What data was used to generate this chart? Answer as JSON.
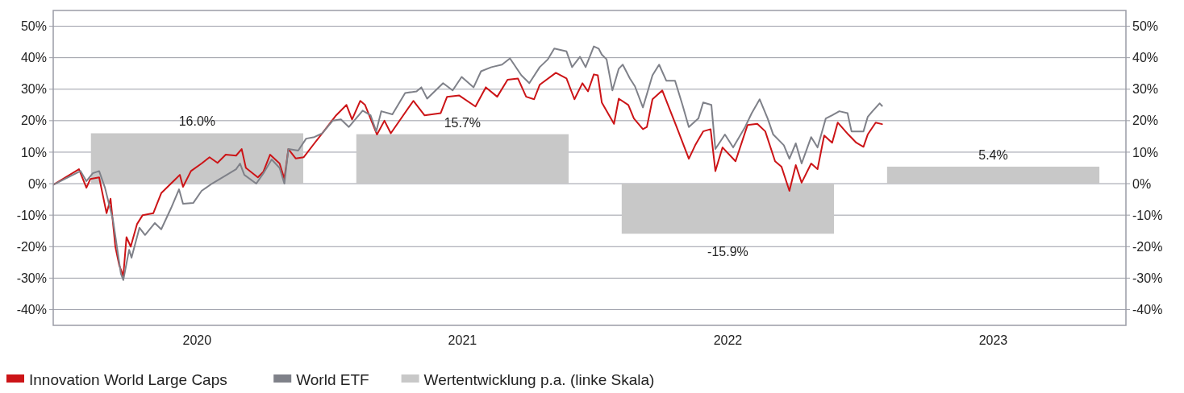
{
  "chart_data": {
    "type": "line",
    "xlim": [
      2019.958,
      2024.0
    ],
    "xticks": [
      {
        "value": 2020.5,
        "label": "2020"
      },
      {
        "value": 2021.5,
        "label": "2021"
      },
      {
        "value": 2022.5,
        "label": "2022"
      },
      {
        "value": 2023.5,
        "label": "2023"
      }
    ],
    "ylim": [
      -45,
      55
    ],
    "yticks": [
      {
        "value": -40,
        "label": "-40%"
      },
      {
        "value": -30,
        "label": "-30%"
      },
      {
        "value": -20,
        "label": "-20%"
      },
      {
        "value": -10,
        "label": "-10%"
      },
      {
        "value": 0,
        "label": "0%"
      },
      {
        "value": 10,
        "label": "10%"
      },
      {
        "value": 20,
        "label": "20%"
      },
      {
        "value": 30,
        "label": "30%"
      },
      {
        "value": 40,
        "label": "40%"
      },
      {
        "value": 50,
        "label": "50%"
      }
    ],
    "y2lim": [
      -45,
      55
    ],
    "y2ticks": [
      {
        "value": -40,
        "label": "-40%"
      },
      {
        "value": -30,
        "label": "-30%"
      },
      {
        "value": -20,
        "label": "-20%"
      },
      {
        "value": -10,
        "label": "-10%"
      },
      {
        "value": 0,
        "label": "0%"
      },
      {
        "value": 10,
        "label": "10%"
      },
      {
        "value": 20,
        "label": "20%"
      },
      {
        "value": 30,
        "label": "30%"
      },
      {
        "value": 40,
        "label": "40%"
      },
      {
        "value": 50,
        "label": "50%"
      }
    ],
    "grid": "y",
    "legend": "bottom",
    "line_style": "solid",
    "series": [
      {
        "name": "Innovation World Large Caps",
        "color": "#cc1417",
        "x": [
          2019.96,
          2020.055,
          2020.083,
          2020.098,
          2020.131,
          2020.159,
          2020.174,
          2020.192,
          2020.207,
          2020.222,
          2020.234,
          2020.25,
          2020.274,
          2020.295,
          2020.335,
          2020.365,
          2020.417,
          2020.435,
          2020.447,
          2020.477,
          2020.517,
          2020.547,
          2020.577,
          2020.608,
          2020.647,
          2020.668,
          2020.684,
          2020.729,
          2020.75,
          2020.775,
          2020.811,
          2020.829,
          2020.844,
          2020.872,
          2020.902,
          2020.942,
          2020.972,
          2021.024,
          2021.063,
          2021.084,
          2021.115,
          2021.133,
          2021.178,
          2021.206,
          2021.23,
          2021.315,
          2021.357,
          2021.418,
          2021.442,
          2021.488,
          2021.549,
          2021.588,
          2021.631,
          2021.67,
          2021.709,
          2021.74,
          2021.77,
          2021.791,
          2021.852,
          2021.892,
          2021.922,
          2021.952,
          2021.973,
          2021.995,
          2022.01,
          2022.025,
          2022.071,
          2022.089,
          2022.125,
          2022.146,
          2022.18,
          2022.195,
          2022.216,
          2022.253,
          2022.307,
          2022.353,
          2022.377,
          2022.407,
          2022.435,
          2022.453,
          2022.48,
          2022.529,
          2022.574,
          2022.611,
          2022.641,
          2022.678,
          2022.702,
          2022.732,
          2022.756,
          2022.778,
          2022.814,
          2022.838,
          2022.863,
          2022.893,
          2022.914,
          2022.954,
          2022.984,
          2023.011,
          2023.027,
          2023.057,
          2023.081
        ],
        "values": [
          -0.3,
          4.6,
          -1.3,
          1.5,
          2,
          -9.4,
          -4.8,
          -20,
          -26,
          -29.3,
          -17,
          -20,
          -12.8,
          -10,
          -9.4,
          -3,
          1.3,
          2.8,
          -1,
          4,
          6.4,
          8.4,
          6.6,
          9.2,
          8.9,
          11,
          5,
          2,
          3.8,
          9.2,
          6.4,
          1.5,
          11,
          8,
          8.4,
          12.8,
          16,
          21.7,
          25,
          20.4,
          26.3,
          25,
          15.6,
          20,
          16,
          26.3,
          21.7,
          22.4,
          27.6,
          28,
          24.5,
          30.6,
          27.6,
          33,
          33.4,
          27.6,
          26.8,
          31.4,
          35.2,
          33.4,
          26.8,
          31.9,
          29.3,
          34.7,
          34.4,
          25.8,
          19,
          27,
          25,
          20.7,
          17.3,
          18,
          26.8,
          29.6,
          18,
          7.9,
          12.2,
          16.6,
          17.3,
          4,
          11.5,
          7.1,
          18.6,
          19,
          16.6,
          7.1,
          5.4,
          -2.3,
          5.9,
          0.3,
          6.4,
          4.6,
          15.3,
          13,
          19.4,
          15.6,
          13,
          11.7,
          15.6,
          19.4,
          18.9
        ]
      },
      {
        "name": "World ETF",
        "color": "#7f8189",
        "x": [
          2019.96,
          2020.061,
          2020.083,
          2020.107,
          2020.131,
          2020.153,
          2020.183,
          2020.213,
          2020.222,
          2020.244,
          2020.253,
          2020.283,
          2020.304,
          2020.341,
          2020.365,
          2020.404,
          2020.432,
          2020.447,
          2020.486,
          2020.517,
          2020.556,
          2020.608,
          2020.647,
          2020.662,
          2020.678,
          2020.723,
          2020.75,
          2020.781,
          2020.811,
          2020.829,
          2020.844,
          2020.881,
          2020.911,
          2020.942,
          2020.972,
          2021.011,
          2021.042,
          2021.072,
          2021.124,
          2021.154,
          2021.175,
          2021.194,
          2021.236,
          2021.284,
          2021.327,
          2021.345,
          2021.367,
          2021.427,
          2021.463,
          2021.497,
          2021.542,
          2021.57,
          2021.609,
          2021.649,
          2021.679,
          2021.722,
          2021.752,
          2021.791,
          2021.822,
          2021.846,
          2021.892,
          2021.913,
          2021.943,
          2021.964,
          2021.995,
          2022.013,
          2022.025,
          2022.043,
          2022.065,
          2022.089,
          2022.104,
          2022.131,
          2022.15,
          2022.18,
          2022.216,
          2022.241,
          2022.268,
          2022.301,
          2022.329,
          2022.353,
          2022.389,
          2022.407,
          2022.438,
          2022.453,
          2022.489,
          2022.52,
          2022.565,
          2022.59,
          2022.62,
          2022.65,
          2022.671,
          2022.711,
          2022.732,
          2022.756,
          2022.778,
          2022.814,
          2022.838,
          2022.869,
          2022.893,
          2022.92,
          2022.951,
          2022.966,
          2023.011,
          2023.027,
          2023.045,
          2023.072,
          2023.081
        ],
        "values": [
          -0.3,
          4,
          0.8,
          3.3,
          4,
          -1.3,
          -11.5,
          -28.6,
          -30.6,
          -21,
          -23.5,
          -14,
          -16.3,
          -12.5,
          -14.5,
          -7.4,
          -1.8,
          -6.4,
          -6.1,
          -2.3,
          0,
          2.6,
          4.6,
          6.4,
          2.8,
          0,
          3.3,
          7.7,
          5,
          0,
          11,
          10.5,
          14.3,
          14.8,
          16,
          20,
          20.4,
          18,
          23.2,
          21.7,
          16.6,
          23,
          22,
          28.8,
          29.3,
          30.6,
          27,
          31.9,
          29.6,
          33.9,
          30.6,
          35.7,
          37,
          37.8,
          39.8,
          34.4,
          31.9,
          37,
          39.5,
          42.9,
          42,
          37,
          40.3,
          37,
          43.6,
          42.9,
          41,
          39.5,
          29.6,
          36.5,
          37.8,
          33.4,
          30.9,
          24.2,
          34.4,
          37.8,
          32.7,
          32.7,
          25,
          18,
          20.7,
          25.8,
          25,
          11,
          15.6,
          11.5,
          18,
          22.4,
          26.8,
          20.7,
          15.6,
          12.2,
          7.9,
          12.8,
          6.4,
          14.8,
          11.5,
          20.7,
          21.7,
          23,
          22.4,
          16.6,
          16.6,
          21.2,
          23,
          25.5,
          24.7
        ]
      },
      {
        "name": "Wertentwicklung p.a. (linke Skala)",
        "type": "bar",
        "color": "#c8c8c8",
        "x": [
          2020.5,
          2021.5,
          2022.5,
          2023.5
        ],
        "values": [
          16.0,
          15.7,
          -15.9,
          5.4
        ],
        "value_labels": [
          "16.0%",
          "15.7%",
          "-15.9%",
          "5.4%"
        ]
      }
    ]
  }
}
